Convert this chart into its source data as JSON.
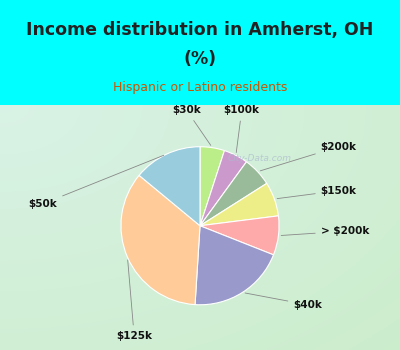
{
  "title_line1": "Income distribution in Amherst, OH",
  "title_line2": "(%)",
  "subtitle": "Hispanic or Latino residents",
  "ordered_labels": [
    "$30k",
    "$100k",
    "$200k",
    "$150k",
    "> $200k",
    "$40k",
    "$125k",
    "$50k"
  ],
  "ordered_values": [
    5,
    5,
    6,
    7,
    8,
    20,
    35,
    14
  ],
  "ordered_colors": [
    "#BBEE88",
    "#CC99CC",
    "#99BB99",
    "#EEEE88",
    "#FFAAAA",
    "#9999CC",
    "#FFCC99",
    "#99CCDD"
  ],
  "bg_cyan": "#00FFFF",
  "bg_chart_color": "#D8EEE0",
  "title_color": "#222222",
  "subtitle_color": "#CC5500",
  "watermark": "City-Data.com",
  "label_fontsize": 7.5,
  "title_fontsize": 12.5,
  "subtitle_fontsize": 9
}
